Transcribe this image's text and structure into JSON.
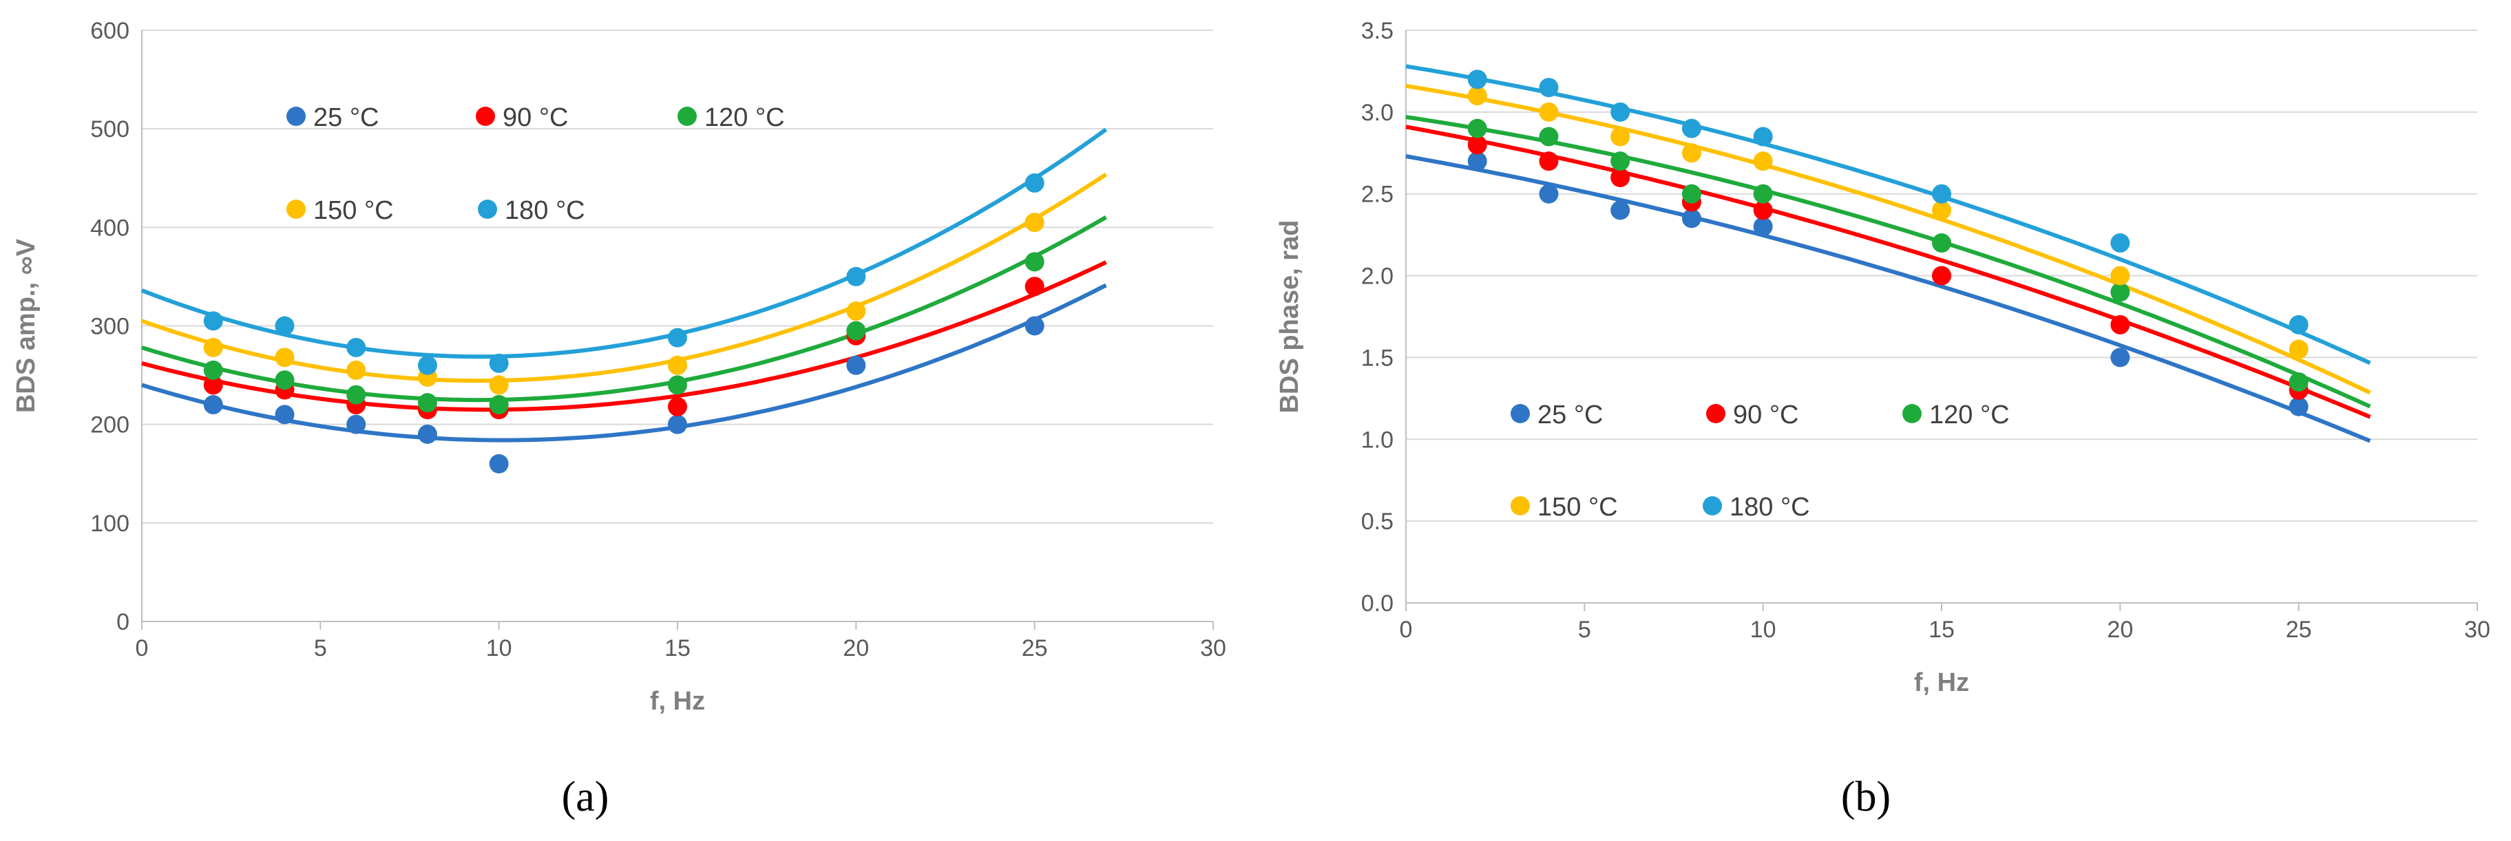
{
  "chart_data": [
    {
      "type": "scatter",
      "panel_label": "(a)",
      "xlabel": "f, Hz",
      "ylabel": "BDS amp., ∞V",
      "xlim": [
        0,
        30
      ],
      "ylim": [
        0,
        600
      ],
      "xticks": [
        0,
        5,
        10,
        15,
        20,
        25,
        30
      ],
      "yticks": [
        0,
        100,
        200,
        300,
        400,
        500,
        600
      ],
      "x": [
        2,
        4,
        6,
        8,
        10,
        15,
        20,
        25
      ],
      "series": [
        {
          "name": "25 °C",
          "color": "#2e75c6",
          "values": [
            220,
            210,
            200,
            190,
            160,
            200,
            260,
            300
          ],
          "fit": [
            240,
            -11.1,
            0.55
          ]
        },
        {
          "name": "90 °C",
          "color": "#ff0000",
          "values": [
            240,
            235,
            220,
            215,
            215,
            218,
            290,
            340
          ],
          "fit": [
            262,
            -9.7,
            0.5
          ]
        },
        {
          "name": "120 °C",
          "color": "#1faa3c",
          "values": [
            255,
            245,
            230,
            222,
            220,
            240,
            295,
            365
          ],
          "fit": [
            278,
            -11.3,
            0.6
          ]
        },
        {
          "name": "150 °C",
          "color": "#ffc000",
          "values": [
            278,
            268,
            255,
            248,
            240,
            260,
            315,
            405
          ],
          "fit": [
            305,
            -12.85,
            0.68
          ]
        },
        {
          "name": "180 °C",
          "color": "#23a0d8",
          "values": [
            305,
            300,
            278,
            260,
            262,
            288,
            350,
            445
          ],
          "fit": [
            336,
            -14.2,
            0.75
          ]
        }
      ]
    },
    {
      "type": "scatter",
      "panel_label": "(b)",
      "xlabel": "f, Hz",
      "ylabel": "BDS phase, rad",
      "xlim": [
        0,
        30
      ],
      "ylim": [
        0,
        3.5
      ],
      "xticks": [
        0,
        5,
        10,
        15,
        20,
        25,
        30
      ],
      "yticks": [
        0.0,
        0.5,
        1.0,
        1.5,
        2.0,
        2.5,
        3.0,
        3.5
      ],
      "ytick_labels": [
        "0.0",
        "0.5",
        "1.0",
        "1.5",
        "2.0",
        "2.5",
        "3.0",
        "3.5"
      ],
      "x": [
        2,
        4,
        6,
        8,
        10,
        15,
        20,
        25
      ],
      "series": [
        {
          "name": "25 °C",
          "color": "#2e75c6",
          "values": [
            2.7,
            2.5,
            2.4,
            2.35,
            2.3,
            2.0,
            1.5,
            1.2
          ],
          "fit": [
            2.73,
            -0.0388,
            -0.00095
          ]
        },
        {
          "name": "90 °C",
          "color": "#ff0000",
          "values": [
            2.8,
            2.7,
            2.6,
            2.45,
            2.4,
            2.0,
            1.7,
            1.3
          ],
          "fit": [
            2.91,
            -0.0403,
            -0.00094
          ]
        },
        {
          "name": "120 °C",
          "color": "#1faa3c",
          "values": [
            2.9,
            2.85,
            2.7,
            2.5,
            2.5,
            2.2,
            1.9,
            1.35
          ],
          "fit": [
            2.97,
            -0.0326,
            -0.00122
          ]
        },
        {
          "name": "150 °C",
          "color": "#ffc000",
          "values": [
            3.1,
            3.0,
            2.85,
            2.75,
            2.7,
            2.4,
            2.0,
            1.55
          ],
          "fit": [
            3.16,
            -0.0357,
            -0.00125
          ]
        },
        {
          "name": "180 °C",
          "color": "#23a0d8",
          "values": [
            3.2,
            3.15,
            3.0,
            2.9,
            2.85,
            2.5,
            2.2,
            1.7
          ],
          "fit": [
            3.28,
            -0.0356,
            -0.00117
          ]
        }
      ]
    }
  ]
}
